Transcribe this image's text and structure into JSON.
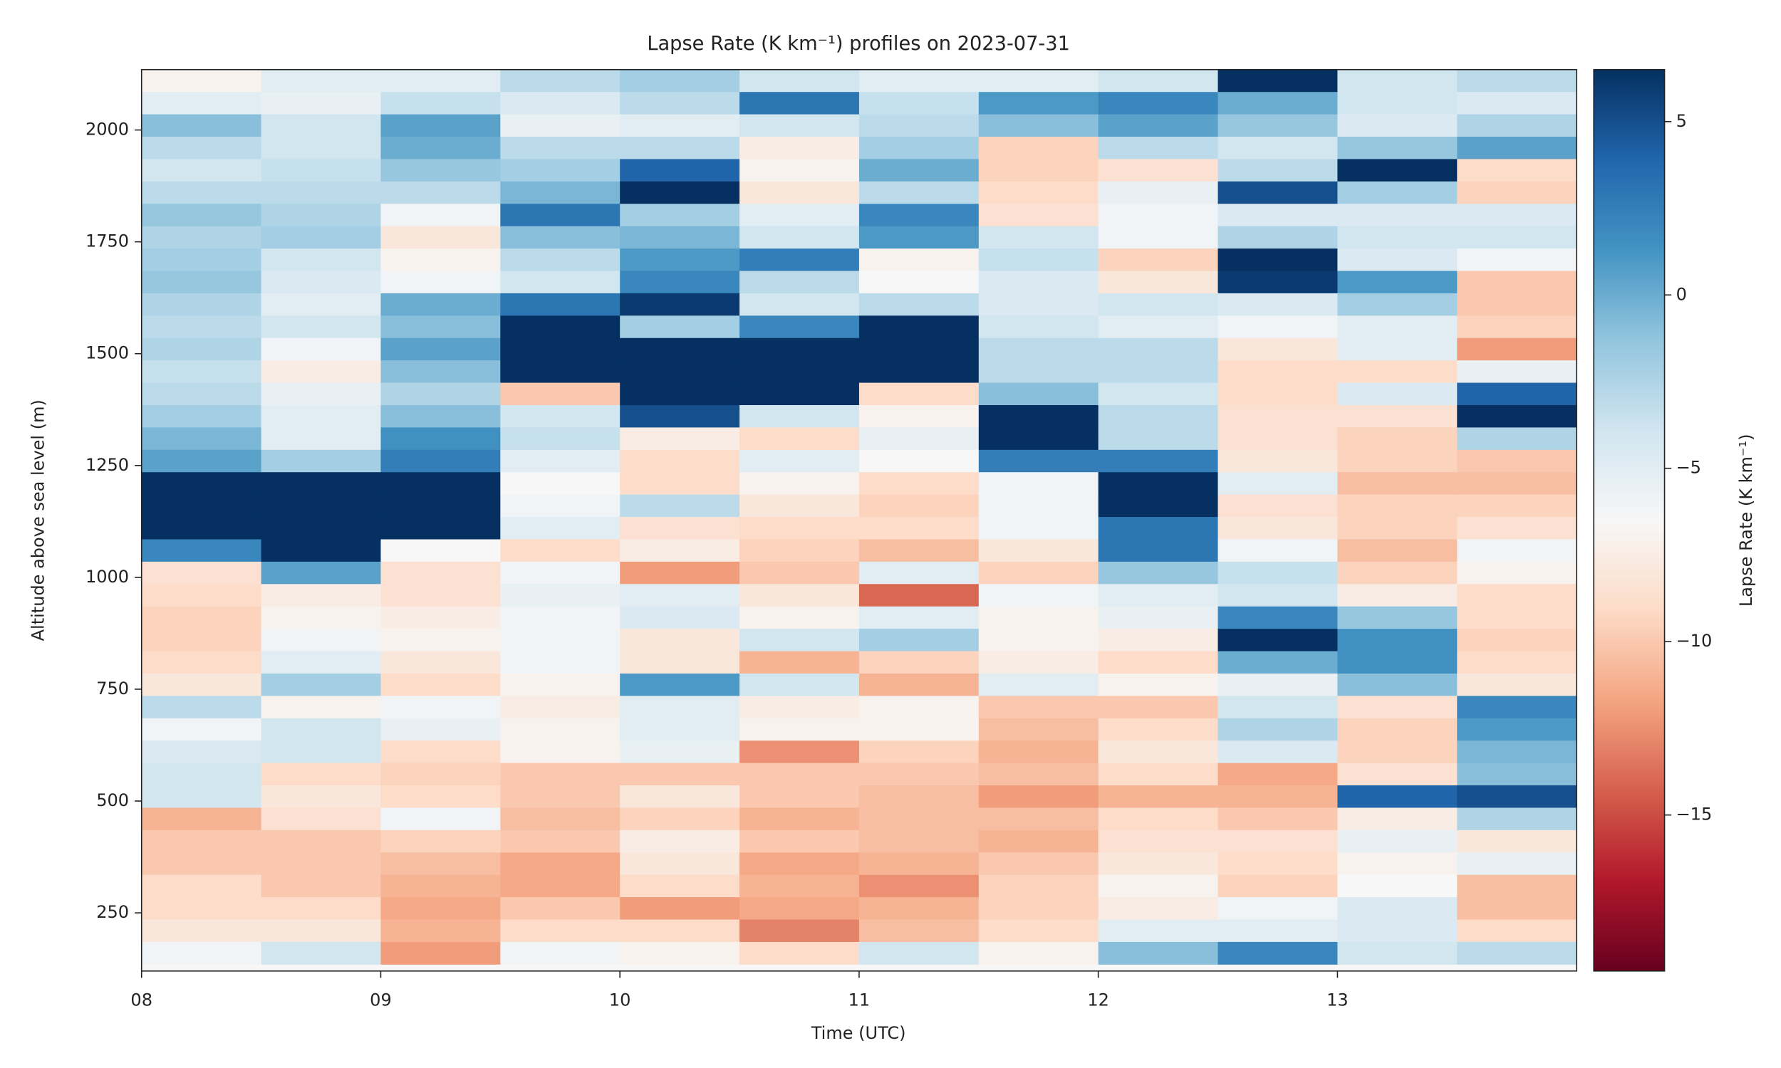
{
  "chart_data": {
    "type": "heatmap",
    "title": "Lapse Rate (K km⁻¹) profiles on 2023-07-31",
    "xlabel": "Time (UTC)",
    "ylabel": "Altitude above sea level (m)",
    "colorbar_label": "Lapse Rate (K km⁻¹)",
    "colormap": "RdBu",
    "x_bins": [
      8,
      8.5,
      9,
      9.5,
      10,
      10.5,
      11,
      11.5,
      12,
      12.5,
      13,
      13.5,
      14
    ],
    "y_bins": [
      2135,
      2085,
      2035,
      1985,
      1935,
      1885,
      1835,
      1785,
      1735,
      1685,
      1635,
      1585,
      1535,
      1485,
      1435,
      1385,
      1335,
      1285,
      1235,
      1185,
      1135,
      1085,
      1035,
      985,
      935,
      885,
      835,
      785,
      735,
      685,
      635,
      585,
      535,
      485,
      435,
      385,
      335,
      285,
      235,
      185,
      135
    ],
    "values": [
      [
        -7,
        -5,
        -1,
        -3,
        -4,
        -3,
        -1.5,
        -2.5,
        -2,
        -1.5,
        -2.5,
        -3,
        -2.5,
        -3.5,
        -3,
        -2,
        -0.5,
        0.5,
        6.5,
        6.5,
        6.5,
        2,
        -8.5,
        -9,
        -9.5,
        -9.5,
        -9,
        -8,
        -3,
        -6,
        -4.5,
        -4,
        -4,
        -11,
        -10,
        -10,
        -9,
        -9,
        -8,
        -6
      ],
      [
        -5,
        -5.5,
        -4,
        -4,
        -3.5,
        -3,
        -2.5,
        -2,
        -4,
        -4.5,
        -5,
        -4,
        -6,
        -7.5,
        -5.5,
        -5,
        -5,
        -2,
        6.5,
        6.5,
        6.5,
        6.5,
        0.5,
        -7.5,
        -7,
        -6,
        -5,
        -2,
        -7,
        -4,
        -4,
        -9,
        -8,
        -8.5,
        -10,
        -10,
        -10,
        -9,
        -8,
        -4
      ],
      [
        -5,
        -3.5,
        0.5,
        0,
        -1.5,
        -3,
        -6,
        -8,
        -7,
        -6,
        0,
        -1,
        0.5,
        -1,
        -2.5,
        -1,
        1.5,
        2.5,
        6.5,
        6.5,
        6.5,
        -6.5,
        -8.5,
        -8.5,
        -7.5,
        -7,
        -8,
        -9,
        -6,
        -5.5,
        -9,
        -9.5,
        -9,
        -6,
        -9.5,
        -10.5,
        -11,
        -11.5,
        -11,
        -12
      ],
      [
        -3,
        -4.5,
        -5.5,
        -3,
        -2,
        -0.5,
        3,
        -1,
        -3,
        -4,
        3,
        6.5,
        6.5,
        6.5,
        -10,
        -4,
        -3.5,
        -5,
        -6.5,
        -6,
        -5,
        -9,
        -6,
        -5.5,
        -6,
        -6,
        -6,
        -7,
        -7.5,
        -7,
        -7,
        -10,
        -10,
        -10.5,
        -10,
        -11.5,
        -11.5,
        -10,
        -9,
        -6
      ],
      [
        -2,
        -3,
        -5,
        -3,
        4,
        6.5,
        -2,
        -0.5,
        1,
        2,
        6,
        -2,
        6.5,
        6.5,
        6.5,
        5,
        -7.5,
        -9,
        -9,
        -3,
        -8.5,
        -7.5,
        -12,
        -5,
        -4.5,
        -8,
        -8,
        1,
        -5,
        -5,
        -5.5,
        -10,
        -8,
        -9.5,
        -7.5,
        -8,
        -9,
        -12,
        -9,
        -7
      ],
      [
        -4,
        3,
        -4,
        -7.5,
        -7,
        -8,
        -5,
        -4,
        2.5,
        -3,
        -4,
        2,
        6.5,
        6.5,
        6.5,
        -4,
        -9,
        -5,
        -7,
        -8,
        -9,
        -9.5,
        -10,
        -8,
        -7,
        -4,
        -11,
        -4,
        -7.5,
        -7,
        -12.5,
        -10,
        -10,
        -11,
        -10,
        -11.5,
        -11,
        -11.5,
        -13,
        -9
      ],
      [
        -5,
        -3.5,
        -3,
        -2,
        0,
        -3,
        2,
        1,
        -7,
        -6.5,
        -3,
        6.5,
        6.5,
        6.5,
        -9,
        -7,
        -5.5,
        -6.5,
        -9,
        -9.5,
        -9,
        -10.5,
        -5,
        -14,
        -5,
        -2,
        -9.5,
        -11,
        -7,
        -7,
        -9.5,
        -10,
        -10.5,
        -10.5,
        -10.5,
        -11,
        -12.5,
        -11,
        -10.5,
        -4
      ],
      [
        -5,
        1,
        -1,
        -9.5,
        -9.5,
        -9,
        -8.5,
        -4,
        -3.5,
        -4.5,
        -4.5,
        -4,
        -3,
        -3,
        -1,
        6.5,
        6.5,
        2.5,
        -6,
        -6,
        -6,
        -8,
        -9.5,
        -6,
        -7,
        -7,
        -7.5,
        -5,
        -10,
        -10.5,
        -11,
        -10.5,
        -12,
        -10.5,
        -11,
        -10,
        -9.5,
        -9.5,
        -9,
        -7
      ],
      [
        -4,
        2,
        0.5,
        -3,
        -8.5,
        -5.5,
        -6,
        -6,
        -9.5,
        -8,
        -4,
        -5,
        -3,
        -3,
        -4,
        -3,
        -3,
        2.5,
        6.5,
        6.5,
        3,
        3,
        -1.5,
        -5,
        -5.5,
        -7.5,
        -9,
        -7,
        -10,
        -9,
        -8,
        -9,
        -11,
        -9,
        -8.5,
        -8,
        -7,
        -7.5,
        -5,
        -1
      ],
      [
        6.5,
        0,
        -1.5,
        -4,
        -3,
        5,
        -4.5,
        -2.5,
        6.5,
        6,
        -4.5,
        -6,
        -8,
        -9,
        -9,
        -8.5,
        -8.5,
        -8,
        -5,
        -8.5,
        -8,
        -6,
        -3.5,
        -4,
        2,
        6.5,
        0,
        -5.5,
        -4,
        -2.5,
        -4.5,
        -11.5,
        -11,
        -10,
        -8.5,
        -9,
        -9.5,
        -6,
        -5,
        2
      ],
      [
        -4,
        -4,
        -4.5,
        -1.5,
        6.5,
        -2,
        -4.5,
        -4,
        -4.5,
        1,
        -2,
        -5,
        -5,
        -9,
        -4.5,
        -8.5,
        -9.5,
        -9.5,
        -10.5,
        -9.5,
        -9.5,
        -10.5,
        -9.5,
        -7.5,
        -1.5,
        1.5,
        1.5,
        -1,
        -8.5,
        -9.5,
        -9.5,
        -8.5,
        4,
        -7.5,
        -5.5,
        -7,
        -6.5,
        -4.5,
        -4.5,
        -4
      ],
      [
        -3,
        -4.5,
        -2.5,
        0.5,
        -9,
        -9.5,
        -4.5,
        -4,
        -6,
        -10,
        -10,
        -9.5,
        -12,
        -5.5,
        4,
        6.5,
        -2.5,
        -10,
        -10.5,
        -9.5,
        -8.5,
        -6,
        -7,
        -9,
        -9,
        -9.5,
        -9,
        -8,
        2,
        1,
        -0.5,
        -1,
        5,
        -2.5,
        -8,
        -5.5,
        -10.5,
        -10.5,
        -9,
        -3
      ]
    ],
    "xlim": [
      8,
      14
    ],
    "ylim": [
      120,
      2135
    ],
    "xticks": [
      {
        "value": 8,
        "label": "08"
      },
      {
        "value": 9,
        "label": "09"
      },
      {
        "value": 10,
        "label": "10"
      },
      {
        "value": 11,
        "label": "11"
      },
      {
        "value": 12,
        "label": "12"
      },
      {
        "value": 13,
        "label": "13"
      }
    ],
    "yticks": [
      250,
      500,
      750,
      1000,
      1250,
      1500,
      1750,
      2000
    ],
    "colorbar_lim": [
      -19.5,
      6.5
    ],
    "colorbar_ticks": [
      5,
      0,
      {
        "value": -5,
        "label": "−5"
      },
      {
        "value": -10,
        "label": "−10"
      },
      {
        "value": -15,
        "label": "−15"
      }
    ]
  }
}
